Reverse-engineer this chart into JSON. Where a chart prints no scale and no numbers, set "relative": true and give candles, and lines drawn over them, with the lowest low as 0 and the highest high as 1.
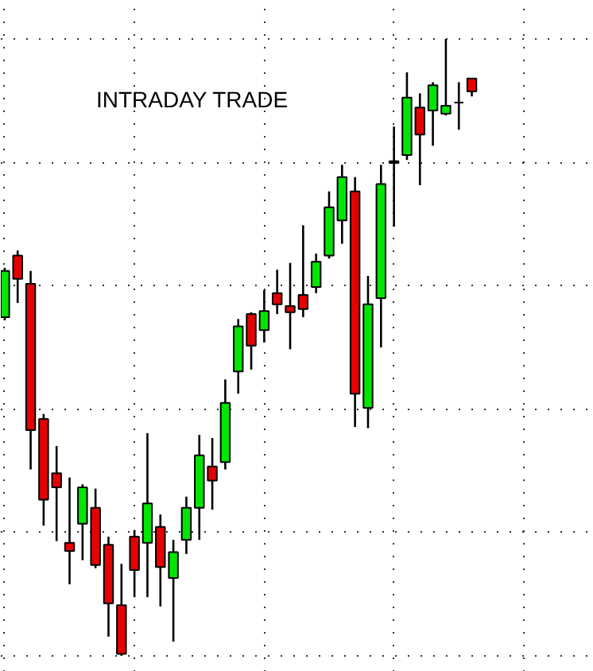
{
  "chart_data": {
    "type": "candlestick",
    "title": "INTRADAY TRADE",
    "relative": true,
    "grid": true,
    "categories": [
      null,
      null,
      null,
      null,
      null,
      null,
      null,
      null,
      null,
      null,
      null,
      null,
      null,
      null,
      null,
      null,
      null,
      null,
      null,
      null,
      null,
      null,
      null,
      null,
      null,
      null,
      null,
      null,
      null,
      null,
      null,
      null,
      null,
      null,
      null,
      null,
      null
    ],
    "ohlc": [
      [
        0.549,
        0.629,
        0.544,
        0.624
      ],
      [
        0.649,
        0.657,
        0.572,
        0.611
      ],
      [
        0.603,
        0.624,
        0.302,
        0.366
      ],
      [
        0.384,
        0.392,
        0.211,
        0.253
      ],
      [
        0.296,
        0.34,
        0.186,
        0.273
      ],
      [
        0.183,
        0.289,
        0.116,
        0.17
      ],
      [
        0.214,
        0.278,
        0.155,
        0.273
      ],
      [
        0.24,
        0.271,
        0.142,
        0.147
      ],
      [
        0.18,
        0.193,
        0.031,
        0.085
      ],
      [
        0.082,
        0.149,
        0,
        0.003
      ],
      [
        0.193,
        0.204,
        0.095,
        0.139
      ],
      [
        0.183,
        0.361,
        0.095,
        0.247
      ],
      [
        0.209,
        0.229,
        0.08,
        0.144
      ],
      [
        0.126,
        0.188,
        0.023,
        0.168
      ],
      [
        0.188,
        0.258,
        0.165,
        0.24
      ],
      [
        0.24,
        0.358,
        0.188,
        0.325
      ],
      [
        0.307,
        0.353,
        0.237,
        0.284
      ],
      [
        0.314,
        0.448,
        0.302,
        0.41
      ],
      [
        0.461,
        0.546,
        0.425,
        0.534
      ],
      [
        0.554,
        0.557,
        0.464,
        0.503
      ],
      [
        0.528,
        0.593,
        0.508,
        0.559
      ],
      [
        0.588,
        0.626,
        0.554,
        0.57
      ],
      [
        0.567,
        0.637,
        0.497,
        0.557
      ],
      [
        0.585,
        0.698,
        0.549,
        0.562
      ],
      [
        0.598,
        0.652,
        0.588,
        0.639
      ],
      [
        0.649,
        0.753,
        0.644,
        0.727
      ],
      [
        0.706,
        0.796,
        0.668,
        0.776
      ],
      [
        0.753,
        0.776,
        0.371,
        0.425
      ],
      [
        0.402,
        0.616,
        0.369,
        0.57
      ],
      [
        0.58,
        0.796,
        0.5,
        0.765
      ],
      [
        0.799,
        0.858,
        0.696,
        0.802
      ],
      [
        0.812,
        0.946,
        0.804,
        0.905
      ],
      [
        0.889,
        0.912,
        0.763,
        0.845
      ],
      [
        0.884,
        0.93,
        0.827,
        0.925
      ],
      [
        0.879,
        1,
        0.876,
        0.892
      ],
      [
        0.897,
        0.93,
        0.853,
        0.897
      ],
      [
        0.936,
        0.936,
        0.907,
        0.915
      ]
    ],
    "colors": [
      "#00e600",
      "#e60000",
      "#e60000",
      "#e60000",
      "#e60000",
      "#e60000",
      "#00e600",
      "#e60000",
      "#e60000",
      "#e60000",
      "#e60000",
      "#00e600",
      "#e60000",
      "#00e600",
      "#00e600",
      "#00e600",
      "#e60000",
      "#00e600",
      "#00e600",
      "#e60000",
      "#00e600",
      "#e60000",
      "#e60000",
      "#e60000",
      "#00e600",
      "#00e600",
      "#00e600",
      "#e60000",
      "#00e600",
      "#00e600",
      "#000000",
      "#00e600",
      "#e60000",
      "#00e600",
      "#00e600",
      "#000000",
      "#e60000"
    ]
  }
}
